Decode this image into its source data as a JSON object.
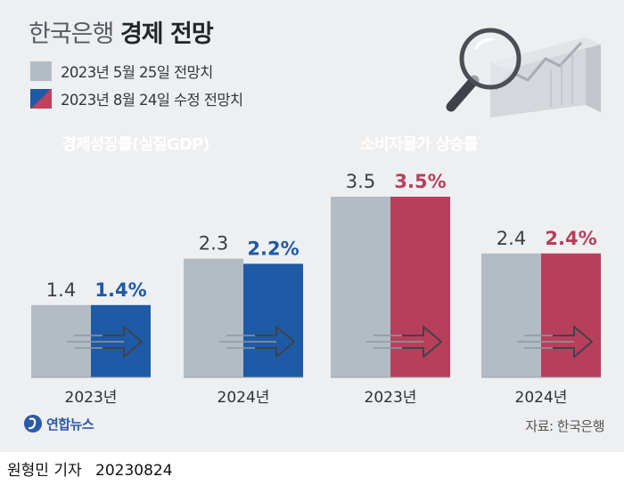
{
  "title_light": "한국은행",
  "title_bold": "경제 전망",
  "legend": [
    {
      "label": "2023년 5월 25일 전망치",
      "color": "#b3bcc4"
    },
    {
      "label": "2023년 8월 24일 수정 전망치",
      "colors": [
        "#1e5aa6",
        "#c0405f"
      ]
    }
  ],
  "panels": [
    {
      "label": "경제성장률(실질GDP)",
      "color": "#1e5aa6"
    },
    {
      "label": "소비자물가 상승률",
      "color": "#b83f5c"
    }
  ],
  "chart_data": [
    {
      "type": "bar",
      "title": "경제성장률(실질GDP)",
      "categories": [
        "2023년",
        "2024년"
      ],
      "series": [
        {
          "name": "2023년 5월 25일 전망치",
          "values": [
            1.4,
            2.3
          ],
          "labels": [
            "1.4",
            "2.3"
          ],
          "color": "#b3bcc4"
        },
        {
          "name": "2023년 8월 24일 수정 전망치",
          "values": [
            1.4,
            2.2
          ],
          "labels": [
            "1.4%",
            "2.2%"
          ],
          "color": "#1e5aa6"
        }
      ]
    },
    {
      "type": "bar",
      "title": "소비자물가 상승률",
      "categories": [
        "2023년",
        "2024년"
      ],
      "series": [
        {
          "name": "2023년 5월 25일 전망치",
          "values": [
            3.5,
            2.4
          ],
          "labels": [
            "3.5",
            "2.4"
          ],
          "color": "#b3bcc4"
        },
        {
          "name": "2023년 8월 24일 수정 전망치",
          "values": [
            3.5,
            2.4
          ],
          "labels": [
            "3.5%",
            "2.4%"
          ],
          "color": "#b83f5c"
        }
      ]
    }
  ],
  "footer": {
    "logo": "연합뉴스",
    "source": "자료: 한국은행"
  },
  "byline": {
    "author": "원형민 기자",
    "date": "20230824"
  }
}
